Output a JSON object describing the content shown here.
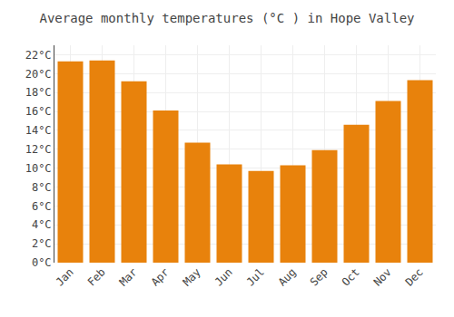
{
  "chart_data": {
    "type": "bar",
    "title": "Average monthly temperatures (°C ) in Hope Valley",
    "categories": [
      "Jan",
      "Feb",
      "Mar",
      "Apr",
      "May",
      "Jun",
      "Jul",
      "Aug",
      "Sep",
      "Oct",
      "Nov",
      "Dec"
    ],
    "values": [
      21.3,
      21.4,
      19.2,
      16.1,
      12.7,
      10.4,
      9.7,
      10.3,
      11.9,
      14.6,
      17.1,
      19.3
    ],
    "color": "#E8820C",
    "ylim": [
      0,
      23
    ],
    "yticks": [
      {
        "value": 0,
        "label": "0°C"
      },
      {
        "value": 2,
        "label": "2°C"
      },
      {
        "value": 4,
        "label": "4°C"
      },
      {
        "value": 6,
        "label": "6°C"
      },
      {
        "value": 8,
        "label": "8°C"
      },
      {
        "value": 10,
        "label": "10°C"
      },
      {
        "value": 12,
        "label": "12°C"
      },
      {
        "value": 14,
        "label": "14°C"
      },
      {
        "value": 16,
        "label": "16°C"
      },
      {
        "value": 18,
        "label": "18°C"
      },
      {
        "value": 20,
        "label": "20°C"
      },
      {
        "value": 22,
        "label": "22°C"
      }
    ],
    "grid": true
  }
}
